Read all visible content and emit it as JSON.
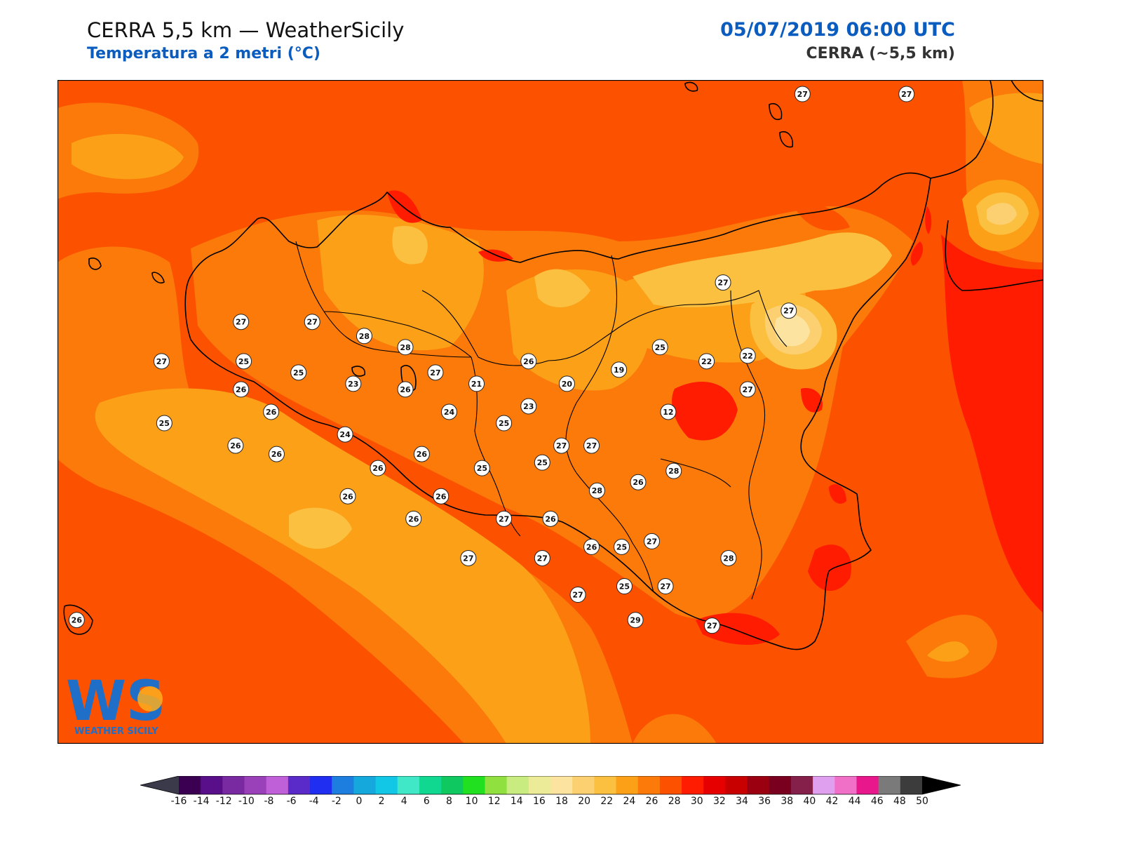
{
  "header": {
    "title": "CERRA 5,5 km — WeatherSicily",
    "subtitle": "Temperatura a 2 metri (°C)",
    "datetime": "05/07/2019 06:00 UTC",
    "model": "CERRA (~5,5 km)"
  },
  "logo": {
    "letters": "WS",
    "caption": "WEATHER SICILY"
  },
  "colorbar": {
    "ticks": [
      "-16",
      "-14",
      "-12",
      "-10",
      "-8",
      "-6",
      "-4",
      "-2",
      "0",
      "2",
      "4",
      "6",
      "8",
      "10",
      "12",
      "14",
      "16",
      "18",
      "20",
      "22",
      "24",
      "26",
      "28",
      "30",
      "32",
      "34",
      "36",
      "38",
      "40",
      "42",
      "44",
      "46",
      "48",
      "50"
    ],
    "colors": [
      "#3b0052",
      "#5a0f8a",
      "#7a2aa0",
      "#9a40b8",
      "#c060d8",
      "#5a2bc8",
      "#1f2ef0",
      "#1e7ee0",
      "#14a8dc",
      "#12c6e6",
      "#40e8c8",
      "#10d890",
      "#10c860",
      "#20e020",
      "#90e040",
      "#c8ec80",
      "#ecec98",
      "#fce4a0",
      "#fcd070",
      "#fcc040",
      "#fca018",
      "#fc7a0a",
      "#fc5200",
      "#ff1c00",
      "#e60000",
      "#c80000",
      "#9a0010",
      "#7a0020",
      "#84204a",
      "#e0a0f0",
      "#f070c8",
      "#e8188c",
      "#7a7a7a",
      "#3c3c3c"
    ],
    "under_color": "#3a3a4a",
    "over_color": "#000000"
  },
  "stations": [
    {
      "v": "27",
      "lon": 14.67,
      "lat": 38.83
    },
    {
      "v": "27",
      "lon": 15.05,
      "lat": 38.83
    },
    {
      "v": "27",
      "lon": 12.62,
      "lat": 38.02
    },
    {
      "v": "27",
      "lon": 12.88,
      "lat": 38.02
    },
    {
      "v": "28",
      "lon": 13.07,
      "lat": 37.97
    },
    {
      "v": "28",
      "lon": 13.22,
      "lat": 37.93
    },
    {
      "v": "27",
      "lon": 12.33,
      "lat": 37.88
    },
    {
      "v": "25",
      "lon": 12.63,
      "lat": 37.88
    },
    {
      "v": "25",
      "lon": 12.83,
      "lat": 37.84
    },
    {
      "v": "23",
      "lon": 13.03,
      "lat": 37.8
    },
    {
      "v": "26",
      "lon": 12.62,
      "lat": 37.78
    },
    {
      "v": "26",
      "lon": 13.22,
      "lat": 37.78
    },
    {
      "v": "27",
      "lon": 13.33,
      "lat": 37.84
    },
    {
      "v": "21",
      "lon": 13.48,
      "lat": 37.8
    },
    {
      "v": "26",
      "lon": 13.67,
      "lat": 37.88
    },
    {
      "v": "25",
      "lon": 14.15,
      "lat": 37.93
    },
    {
      "v": "27",
      "lon": 14.38,
      "lat": 38.16
    },
    {
      "v": "27",
      "lon": 14.62,
      "lat": 38.06
    },
    {
      "v": "22",
      "lon": 14.32,
      "lat": 37.88
    },
    {
      "v": "22",
      "lon": 14.47,
      "lat": 37.9
    },
    {
      "v": "19",
      "lon": 14.0,
      "lat": 37.85
    },
    {
      "v": "20",
      "lon": 13.81,
      "lat": 37.8
    },
    {
      "v": "23",
      "lon": 13.67,
      "lat": 37.72
    },
    {
      "v": "27",
      "lon": 14.47,
      "lat": 37.78
    },
    {
      "v": "12",
      "lon": 14.18,
      "lat": 37.7
    },
    {
      "v": "26",
      "lon": 12.73,
      "lat": 37.7
    },
    {
      "v": "24",
      "lon": 13.38,
      "lat": 37.7
    },
    {
      "v": "25",
      "lon": 13.58,
      "lat": 37.66
    },
    {
      "v": "25",
      "lon": 12.34,
      "lat": 37.66
    },
    {
      "v": "24",
      "lon": 13.0,
      "lat": 37.62
    },
    {
      "v": "26",
      "lon": 12.6,
      "lat": 37.58
    },
    {
      "v": "27",
      "lon": 13.9,
      "lat": 37.58
    },
    {
      "v": "27",
      "lon": 13.79,
      "lat": 37.58
    },
    {
      "v": "26",
      "lon": 12.75,
      "lat": 37.55
    },
    {
      "v": "26",
      "lon": 13.28,
      "lat": 37.55
    },
    {
      "v": "25",
      "lon": 13.72,
      "lat": 37.52
    },
    {
      "v": "26",
      "lon": 13.12,
      "lat": 37.5
    },
    {
      "v": "25",
      "lon": 13.5,
      "lat": 37.5
    },
    {
      "v": "28",
      "lon": 14.2,
      "lat": 37.49
    },
    {
      "v": "26",
      "lon": 14.07,
      "lat": 37.45
    },
    {
      "v": "26",
      "lon": 13.01,
      "lat": 37.4
    },
    {
      "v": "28",
      "lon": 13.92,
      "lat": 37.42
    },
    {
      "v": "26",
      "lon": 13.35,
      "lat": 37.4
    },
    {
      "v": "26",
      "lon": 13.25,
      "lat": 37.32
    },
    {
      "v": "27",
      "lon": 13.58,
      "lat": 37.32
    },
    {
      "v": "26",
      "lon": 13.75,
      "lat": 37.32
    },
    {
      "v": "27",
      "lon": 14.12,
      "lat": 37.24
    },
    {
      "v": "26",
      "lon": 13.9,
      "lat": 37.22
    },
    {
      "v": "25",
      "lon": 14.01,
      "lat": 37.22
    },
    {
      "v": "28",
      "lon": 14.4,
      "lat": 37.18
    },
    {
      "v": "27",
      "lon": 13.45,
      "lat": 37.18
    },
    {
      "v": "27",
      "lon": 13.72,
      "lat": 37.18
    },
    {
      "v": "25",
      "lon": 14.02,
      "lat": 37.08
    },
    {
      "v": "27",
      "lon": 14.17,
      "lat": 37.08
    },
    {
      "v": "27",
      "lon": 13.85,
      "lat": 37.05
    },
    {
      "v": "29",
      "lon": 14.06,
      "lat": 36.96
    },
    {
      "v": "27",
      "lon": 14.34,
      "lat": 36.94
    },
    {
      "v": "26",
      "lon": 12.02,
      "lat": 36.96
    }
  ]
}
